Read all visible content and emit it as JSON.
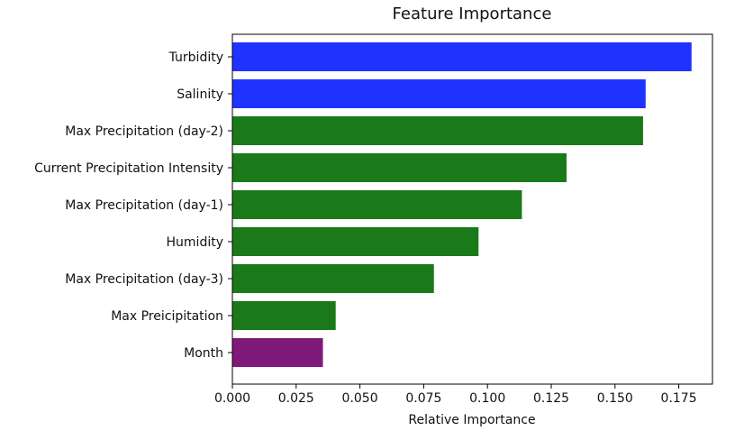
{
  "chart_data": {
    "type": "bar",
    "orientation": "horizontal",
    "title": "Feature Importance",
    "xlabel": "Relative Importance",
    "ylabel": "",
    "xlim": [
      0,
      0.19
    ],
    "x_ticks": [
      "0.000",
      "0.025",
      "0.050",
      "0.075",
      "0.100",
      "0.125",
      "0.150",
      "0.175"
    ],
    "grid": false,
    "categories": [
      "Turbidity",
      "Salinity",
      "Max Precipitation (day-2)",
      "Current Precipitation Intensity",
      "Max Precipitation (day-1)",
      "Humidity",
      "Max Precipitation (day-3)",
      "Max Preicipitation",
      "Month"
    ],
    "values": [
      0.18,
      0.162,
      0.161,
      0.131,
      0.1135,
      0.0965,
      0.079,
      0.0405,
      0.0355
    ],
    "bar_colors": [
      "#1f33ff",
      "#1f33ff",
      "#1a7a1a",
      "#1a7a1a",
      "#1a7a1a",
      "#1a7a1a",
      "#1a7a1a",
      "#1a7a1a",
      "#801a7a"
    ]
  }
}
